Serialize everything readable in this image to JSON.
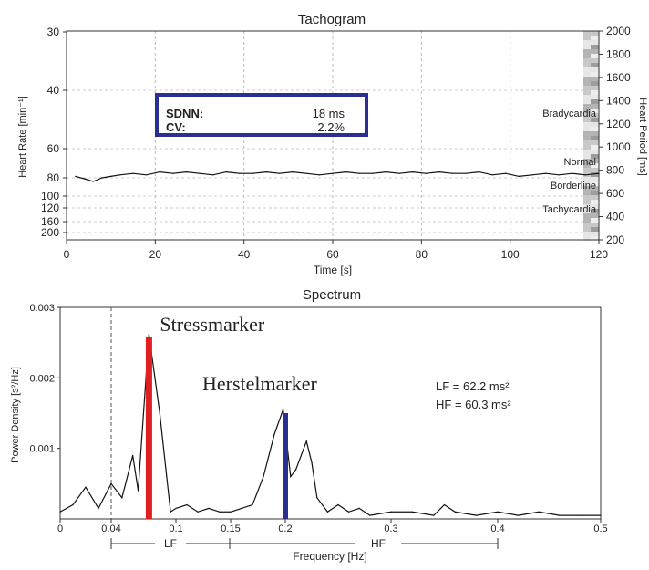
{
  "tachogram": {
    "title": "Tachogram",
    "xlabel": "Time [s]",
    "ylabel_left": "Heart Rate [min⁻¹]",
    "ylabel_right": "Heart Period [ms]",
    "x_ticks": [
      "0",
      "20",
      "40",
      "60",
      "80",
      "100",
      "120"
    ],
    "y_left_ticks": [
      "30",
      "40",
      "60",
      "80",
      "100",
      "120",
      "160",
      "200"
    ],
    "y_right_ticks": [
      "2000",
      "1800",
      "1600",
      "1400",
      "1200",
      "1000",
      "800",
      "600",
      "400",
      "200"
    ],
    "zones": [
      "Bradycardia",
      "Normal",
      "Borderline",
      "Tachycardia"
    ],
    "stats": {
      "sdnn_label": "SDNN:",
      "sdnn_value": "18 ms",
      "cv_label": "CV:",
      "cv_value": "2.2%"
    },
    "box_color": "#2b2f8f"
  },
  "spectrum": {
    "title": "Spectrum",
    "xlabel": "Frequency [Hz]",
    "ylabel": "Power Density [s²/Hz]",
    "x_ticks": [
      "0",
      "0.04",
      "0.1",
      "0.15",
      "0.2",
      "0.3",
      "0.4",
      "0.5"
    ],
    "y_ticks": [
      "0.003",
      "0.002",
      "0.001"
    ],
    "band_labels": [
      "LF",
      "HF"
    ],
    "lf_text": "LF = 62.2 ms²",
    "hf_text": "HF = 60.3 ms²",
    "stress_marker": {
      "label": "Stressmarker",
      "color": "#e02020",
      "x": 0.075,
      "y": 0.00258
    },
    "recovery_marker": {
      "label": "Herstelmarker",
      "color": "#2b2f8f",
      "x": 0.2,
      "y": 0.0015
    }
  },
  "chart_data": [
    {
      "type": "line",
      "title": "Tachogram",
      "xlabel": "Time [s]",
      "ylabel": "Heart Rate [min⁻¹]",
      "xlim": [
        0,
        120
      ],
      "y_right_label": "Heart Period [ms]",
      "y_right_lim": [
        200,
        2000
      ],
      "series": [
        {
          "x": [
            2,
            4,
            6,
            8,
            10,
            12,
            15,
            18,
            21,
            24,
            27,
            30,
            33,
            36,
            39,
            42,
            45,
            48,
            51,
            54,
            57,
            60,
            63,
            66,
            69,
            72,
            75,
            78,
            81,
            84,
            87,
            90,
            93,
            96,
            99,
            102,
            105,
            108,
            111,
            114,
            117,
            120
          ],
          "y": [
            79,
            81,
            84,
            80,
            79,
            78,
            77,
            78,
            76,
            77,
            76,
            77,
            78,
            76,
            77,
            77,
            76,
            77,
            76,
            77,
            78,
            77,
            76,
            77,
            77,
            76,
            77,
            76,
            77,
            76,
            77,
            77,
            76,
            78,
            77,
            79,
            78,
            77,
            78,
            77,
            78,
            77
          ]
        }
      ]
    },
    {
      "type": "line",
      "title": "Spectrum",
      "xlabel": "Frequency [Hz]",
      "ylabel": "Power Density [s²/Hz]",
      "xlim": [
        0,
        0.5
      ],
      "ylim": [
        0,
        0.003
      ],
      "series": [
        {
          "x": [
            0.0,
            0.01,
            0.02,
            0.03,
            0.04,
            0.05,
            0.06,
            0.065,
            0.075,
            0.085,
            0.095,
            0.1,
            0.11,
            0.12,
            0.13,
            0.14,
            0.15,
            0.16,
            0.17,
            0.18,
            0.19,
            0.198,
            0.205,
            0.21,
            0.22,
            0.225,
            0.23,
            0.24,
            0.25,
            0.26,
            0.27,
            0.28,
            0.3,
            0.32,
            0.34,
            0.35,
            0.36,
            0.38,
            0.4,
            0.42,
            0.44,
            0.46,
            0.48,
            0.5
          ],
          "y": [
            0.0001,
            0.0002,
            0.00045,
            0.00015,
            0.0005,
            0.0003,
            0.0009,
            0.0004,
            0.00262,
            0.0015,
            0.0001,
            0.00015,
            0.0002,
            0.0001,
            0.00015,
            0.0001,
            0.0001,
            0.00015,
            0.0002,
            0.0006,
            0.0012,
            0.00155,
            0.0006,
            0.0007,
            0.0011,
            0.0008,
            0.0003,
            0.0001,
            0.0002,
            0.0001,
            0.00015,
            5e-05,
            0.0001,
            0.0001,
            5e-05,
            0.0002,
            0.0001,
            5e-05,
            0.0001,
            5e-05,
            0.0001,
            5e-05,
            5e-05,
            5e-05
          ]
        }
      ]
    }
  ]
}
